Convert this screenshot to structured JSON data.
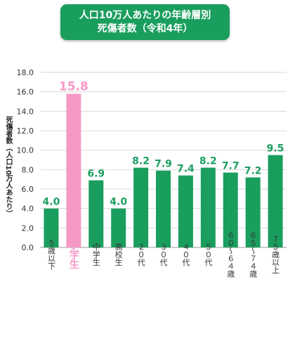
{
  "title": {
    "line1": "人口10万人あたりの年齢層別",
    "line2": "死傷者数（令和4年）"
  },
  "colors": {
    "bar": "#1a9e5e",
    "highlight": "#f799c7",
    "title_bg": "#1a9e5e",
    "grid": "#d9d9d9"
  },
  "chart_data": {
    "type": "bar",
    "title": "人口10万人あたりの年齢層別 死傷者数（令和4年）",
    "xlabel": "",
    "ylabel": "死傷者数（人口10万人あたり）",
    "ylim": [
      0,
      18
    ],
    "yticks": [
      "0.0",
      "2.0",
      "4.0",
      "6.0",
      "8.0",
      "10.0",
      "12.0",
      "14.0",
      "16.0",
      "18.0"
    ],
    "grid": true,
    "categories": [
      "５歳以下",
      "小学生",
      "中学生",
      "高校生",
      "２０代",
      "３０代",
      "４０代",
      "５０代",
      "６０～６４歳",
      "６５～７４歳",
      "７５歳以上"
    ],
    "values": [
      4.0,
      15.8,
      6.9,
      4.0,
      8.2,
      7.9,
      7.4,
      8.2,
      7.7,
      7.2,
      9.5
    ],
    "data_labels": [
      "4.0",
      "15.8",
      "6.9",
      "4.0",
      "8.2",
      "7.9",
      "7.4",
      "8.2",
      "7.7",
      "7.2",
      "9.5"
    ],
    "highlight_category": "小学生"
  }
}
